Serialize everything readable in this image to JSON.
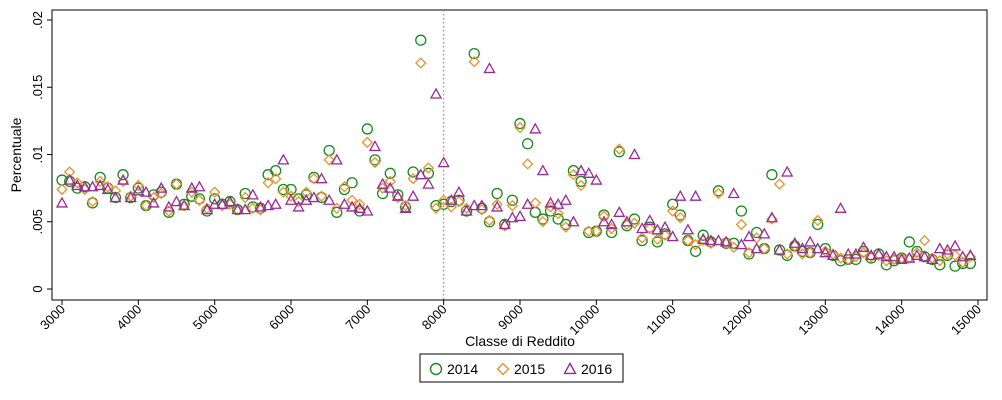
{
  "chart_data": {
    "type": "scatter",
    "xlabel": "Classe di Reddito",
    "ylabel": "Percentuale",
    "xlim": [
      3000,
      15000
    ],
    "ylim": [
      0,
      0.02
    ],
    "x_ticks": [
      3000,
      4000,
      5000,
      6000,
      7000,
      8000,
      9000,
      10000,
      11000,
      12000,
      13000,
      14000,
      15000
    ],
    "y_ticks": [
      0,
      0.005,
      0.01,
      0.015,
      0.02
    ],
    "y_tick_labels": [
      "0",
      ".005",
      ".01",
      ".015",
      ".02"
    ],
    "reference_line_x": 8000,
    "legend_position": "bottom",
    "x": [
      3000,
      3100,
      3200,
      3300,
      3400,
      3500,
      3600,
      3700,
      3800,
      3900,
      4000,
      4100,
      4200,
      4300,
      4400,
      4500,
      4600,
      4700,
      4800,
      4900,
      5000,
      5100,
      5200,
      5300,
      5400,
      5500,
      5600,
      5700,
      5800,
      5900,
      6000,
      6100,
      6200,
      6300,
      6400,
      6500,
      6600,
      6700,
      6800,
      6900,
      7000,
      7100,
      7200,
      7300,
      7400,
      7500,
      7600,
      7700,
      7800,
      7900,
      8000,
      8100,
      8200,
      8300,
      8400,
      8500,
      8600,
      8700,
      8800,
      8900,
      9000,
      9100,
      9200,
      9300,
      9400,
      9500,
      9600,
      9700,
      9800,
      9900,
      10000,
      10100,
      10200,
      10300,
      10400,
      10500,
      10600,
      10700,
      10800,
      10900,
      11000,
      11100,
      11200,
      11300,
      11400,
      11500,
      11600,
      11700,
      11800,
      11900,
      12000,
      12100,
      12200,
      12300,
      12400,
      12500,
      12600,
      12700,
      12800,
      12900,
      13000,
      13100,
      13200,
      13300,
      13400,
      13500,
      13600,
      13700,
      13800,
      13900,
      14000,
      14100,
      14200,
      14300,
      14400,
      14500,
      14600,
      14700,
      14800,
      14900
    ],
    "series": [
      {
        "name": "2014",
        "color": "#1a8a1a",
        "marker": "circle",
        "values": [
          0.0081,
          0.008,
          0.0075,
          0.0076,
          0.0064,
          0.0083,
          0.0075,
          0.0068,
          0.0085,
          0.0068,
          0.0075,
          0.0062,
          0.007,
          0.0072,
          0.0057,
          0.0078,
          0.0063,
          0.0069,
          0.0067,
          0.0058,
          0.0067,
          0.0063,
          0.0065,
          0.0059,
          0.0071,
          0.0061,
          0.006,
          0.0085,
          0.0088,
          0.0074,
          0.0074,
          0.0067,
          0.007,
          0.0083,
          0.0068,
          0.0103,
          0.0057,
          0.0074,
          0.0079,
          0.0058,
          0.0119,
          0.0096,
          0.0071,
          0.0086,
          0.007,
          0.0061,
          0.0087,
          0.0185,
          0.0086,
          0.0062,
          0.0063,
          0.0065,
          0.0066,
          0.0058,
          0.0175,
          0.006,
          0.005,
          0.0071,
          0.0048,
          0.0066,
          0.0123,
          0.0108,
          0.0057,
          0.0052,
          0.0058,
          0.0052,
          0.0048,
          0.0088,
          0.008,
          0.0042,
          0.0043,
          0.0055,
          0.0042,
          0.0102,
          0.0047,
          0.0052,
          0.0036,
          0.0046,
          0.0035,
          0.0041,
          0.0063,
          0.0055,
          0.0036,
          0.0028,
          0.004,
          0.0035,
          0.0073,
          0.0034,
          0.0034,
          0.0058,
          0.0026,
          0.0042,
          0.003,
          0.0085,
          0.0029,
          0.0025,
          0.0032,
          0.0028,
          0.0027,
          0.0048,
          0.003,
          0.0025,
          0.0021,
          0.0022,
          0.0022,
          0.0028,
          0.0023,
          0.0026,
          0.0018,
          0.0021,
          0.0023,
          0.0035,
          0.0028,
          0.0024,
          0.0022,
          0.0018,
          0.0025,
          0.0017,
          0.0019,
          0.0019
        ]
      },
      {
        "name": "2015",
        "color": "#e8922f",
        "marker": "diamond",
        "values": [
          0.0074,
          0.0087,
          0.0079,
          0.0074,
          0.0065,
          0.008,
          0.0076,
          0.0073,
          0.008,
          0.0069,
          0.0077,
          0.0062,
          0.0068,
          0.0071,
          0.0058,
          0.0078,
          0.0062,
          0.0072,
          0.0066,
          0.006,
          0.0072,
          0.0062,
          0.0063,
          0.0059,
          0.0068,
          0.006,
          0.0059,
          0.0079,
          0.0082,
          0.0072,
          0.0069,
          0.0065,
          0.0072,
          0.0082,
          0.0069,
          0.0096,
          0.006,
          0.0076,
          0.0066,
          0.0063,
          0.0109,
          0.0094,
          0.0075,
          0.008,
          0.0068,
          0.0062,
          0.0082,
          0.0168,
          0.009,
          0.006,
          0.0066,
          0.0061,
          0.0065,
          0.006,
          0.0169,
          0.0059,
          0.0051,
          0.0063,
          0.0047,
          0.0062,
          0.012,
          0.0093,
          0.0064,
          0.005,
          0.0061,
          0.0056,
          0.0046,
          0.0085,
          0.0077,
          0.0043,
          0.0043,
          0.0054,
          0.0045,
          0.0104,
          0.0048,
          0.0049,
          0.0038,
          0.0045,
          0.0037,
          0.004,
          0.0058,
          0.0053,
          0.0036,
          0.0033,
          0.0036,
          0.0034,
          0.0071,
          0.0035,
          0.0031,
          0.0048,
          0.0027,
          0.0038,
          0.003,
          0.0052,
          0.0078,
          0.0026,
          0.0032,
          0.0026,
          0.0027,
          0.0051,
          0.0028,
          0.0026,
          0.0023,
          0.0022,
          0.0024,
          0.0027,
          0.0024,
          0.0025,
          0.0021,
          0.0022,
          0.0023,
          0.0023,
          0.0027,
          0.0036,
          0.0023,
          0.0021,
          0.0026,
          0.0025,
          0.002,
          0.0024
        ]
      },
      {
        "name": "2016",
        "color": "#9a2a9a",
        "marker": "triangle",
        "values": [
          0.0064,
          0.0081,
          0.0077,
          0.0076,
          0.0076,
          0.0077,
          0.0074,
          0.0068,
          0.0081,
          0.0068,
          0.0073,
          0.0072,
          0.0064,
          0.0075,
          0.0061,
          0.0065,
          0.0062,
          0.0075,
          0.0076,
          0.0059,
          0.0063,
          0.0063,
          0.0065,
          0.0059,
          0.0059,
          0.007,
          0.0061,
          0.0062,
          0.0063,
          0.0096,
          0.0066,
          0.0061,
          0.0066,
          0.0068,
          0.0082,
          0.0066,
          0.0096,
          0.0063,
          0.0061,
          0.006,
          0.0058,
          0.0106,
          0.0078,
          0.0075,
          0.0069,
          0.006,
          0.0069,
          0.0085,
          0.0078,
          0.0145,
          0.0094,
          0.0066,
          0.0072,
          0.0058,
          0.0062,
          0.0062,
          0.0164,
          0.0061,
          0.0048,
          0.0053,
          0.0054,
          0.0063,
          0.0119,
          0.0088,
          0.0064,
          0.0063,
          0.0066,
          0.005,
          0.0088,
          0.0086,
          0.0081,
          0.005,
          0.0048,
          0.0057,
          0.005,
          0.01,
          0.0045,
          0.0051,
          0.0044,
          0.0046,
          0.0039,
          0.0069,
          0.0044,
          0.0069,
          0.0037,
          0.0036,
          0.0036,
          0.0035,
          0.0071,
          0.0033,
          0.0039,
          0.003,
          0.0041,
          0.0053,
          0.0029,
          0.0087,
          0.0034,
          0.003,
          0.0035,
          0.003,
          0.0027,
          0.0025,
          0.006,
          0.0026,
          0.0026,
          0.0031,
          0.0025,
          0.0026,
          0.0024,
          0.0024,
          0.0022,
          0.0023,
          0.0025,
          0.0024,
          0.0022,
          0.003,
          0.0029,
          0.0032,
          0.0024,
          0.0025
        ]
      }
    ]
  }
}
